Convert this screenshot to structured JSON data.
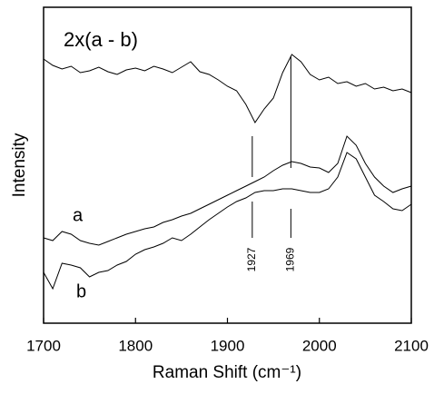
{
  "chart_data": {
    "type": "line",
    "xlabel": "Raman Shift (cm⁻¹)",
    "ylabel": "Intensity",
    "x": [
      1700,
      1710,
      1720,
      1730,
      1740,
      1750,
      1760,
      1770,
      1780,
      1790,
      1800,
      1810,
      1820,
      1830,
      1840,
      1850,
      1860,
      1870,
      1880,
      1890,
      1900,
      1910,
      1920,
      1930,
      1940,
      1950,
      1960,
      1970,
      1980,
      1990,
      2000,
      2010,
      2020,
      2030,
      2040,
      2050,
      2060,
      2070,
      2080,
      2090,
      2100
    ],
    "series": [
      {
        "name": "2x(a - b)",
        "color": "#000000",
        "values": [
          291,
          284,
          280,
          283,
          276,
          278,
          282,
          277,
          274,
          279,
          281,
          278,
          283,
          280,
          276,
          282,
          288,
          277,
          274,
          268,
          261,
          256,
          241,
          221,
          236,
          248,
          276,
          296,
          288,
          274,
          268,
          271,
          264,
          266,
          261,
          264,
          258,
          260,
          256,
          258,
          254
        ]
      },
      {
        "name": "a",
        "color": "#000000",
        "values": [
          94,
          91,
          101,
          98,
          91,
          88,
          86,
          90,
          94,
          98,
          101,
          104,
          106,
          111,
          114,
          118,
          121,
          126,
          131,
          136,
          141,
          146,
          151,
          156,
          161,
          168,
          174,
          178,
          176,
          172,
          171,
          166,
          176,
          206,
          196,
          176,
          161,
          151,
          144,
          148,
          151
        ]
      },
      {
        "name": "b",
        "color": "#000000",
        "values": [
          56,
          38,
          66,
          64,
          61,
          51,
          56,
          58,
          64,
          68,
          76,
          81,
          84,
          88,
          94,
          91,
          98,
          106,
          114,
          121,
          128,
          134,
          138,
          144,
          146,
          146,
          148,
          148,
          146,
          144,
          144,
          148,
          161,
          188,
          181,
          161,
          141,
          134,
          126,
          124,
          131
        ]
      }
    ],
    "marker_lines": [
      1927,
      1969
    ],
    "xlim": [
      1700,
      2100
    ],
    "xticks": [
      1700,
      1800,
      1900,
      2000,
      2100
    ],
    "ylim": [
      0,
      348
    ]
  }
}
